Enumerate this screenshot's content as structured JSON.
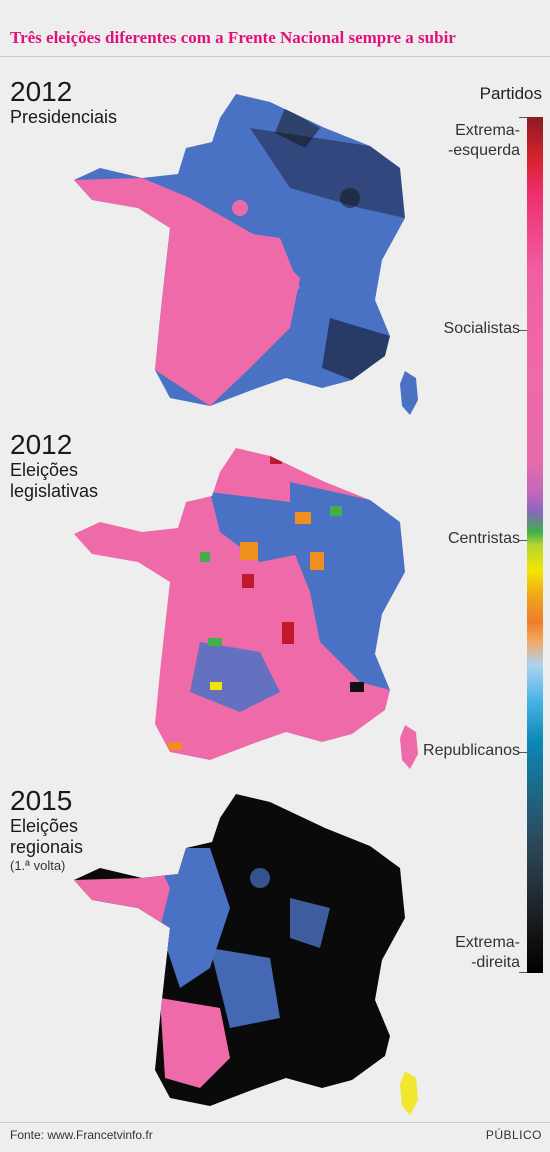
{
  "title": "Três eleições diferentes com a Frente Nacional sempre a subir",
  "legend": {
    "heading": "Partidos",
    "labels": [
      {
        "line1": "Extrema-",
        "line2": "-esquerda"
      },
      {
        "line1": "Socialistas",
        "line2": ""
      },
      {
        "line1": "Centristas",
        "line2": ""
      },
      {
        "line1": "Republicanos",
        "line2": ""
      },
      {
        "line1": "Extrema-",
        "line2": "-direita"
      }
    ],
    "colors": {
      "far_left": "#c0182c",
      "socialists": "#ef6aa9",
      "centrists": "#41b04a",
      "yellow": "#f3e500",
      "orange": "#ef8f1e",
      "republicans": "#4a72c4",
      "far_right": "#0a0a0a"
    }
  },
  "maps": [
    {
      "year": "2012",
      "line1": "Presidenciais",
      "line2": "",
      "note": "",
      "dominant": "mixed-pink-blue"
    },
    {
      "year": "2012",
      "line1": "Eleições",
      "line2": "legislativas",
      "note": "",
      "dominant": "pink"
    },
    {
      "year": "2015",
      "line1": "Eleições",
      "line2": "regionais",
      "note": "(1.ª volta)",
      "dominant": "black"
    }
  ],
  "footer": {
    "source": "Fonte: www.Francetvinfo.fr",
    "brand": "PÚBLICO"
  }
}
